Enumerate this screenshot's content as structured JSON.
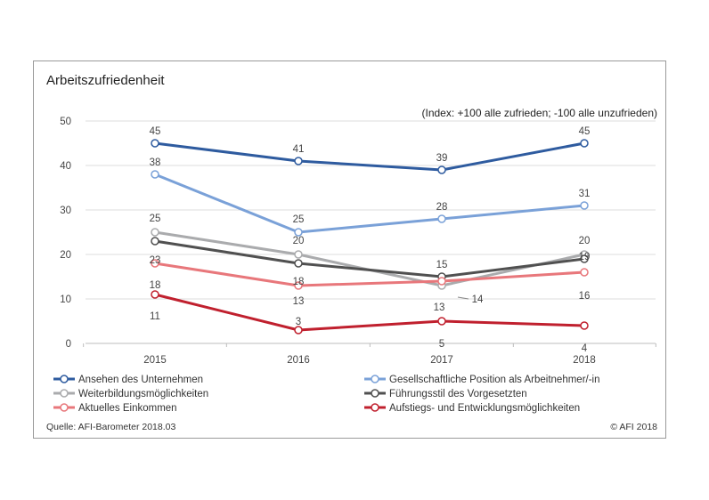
{
  "chart_data": {
    "type": "line",
    "title": "Arbeitszufriedenheit",
    "subtitle": "(Index: +100 alle zufrieden; -100 alle unzufrieden)",
    "categories": [
      "2015",
      "2016",
      "2017",
      "2018"
    ],
    "ylim": [
      0,
      50
    ],
    "yticks": [
      "0",
      "10",
      "20",
      "30",
      "40",
      "50"
    ],
    "grid": true,
    "legend_position": "bottom",
    "series": [
      {
        "name": "Ansehen des Unternehmen",
        "values": [
          45,
          41,
          39,
          45
        ],
        "color": "#2e5b9f"
      },
      {
        "name": "Gesellschaftliche Position als Arbeitnehmer/-in",
        "values": [
          38,
          25,
          28,
          31
        ],
        "color": "#7aa1d8"
      },
      {
        "name": "Weiterbildungsmöglichkeiten",
        "values": [
          25,
          20,
          13,
          20
        ],
        "color": "#aaabad"
      },
      {
        "name": "Führungsstil des Vorgesetzten",
        "values": [
          23,
          18,
          15,
          19
        ],
        "color": "#505050"
      },
      {
        "name": "Aktuelles Einkommen",
        "values": [
          18,
          13,
          14,
          16
        ],
        "color": "#e8777b"
      },
      {
        "name": "Aufstiegs- und Entwicklungsmöglichkeiten",
        "values": [
          11,
          3,
          5,
          4
        ],
        "color": "#c0202e"
      }
    ],
    "source": "Quelle: AFI-Barometer 2018.03",
    "copyright": "© AFI 2018"
  }
}
